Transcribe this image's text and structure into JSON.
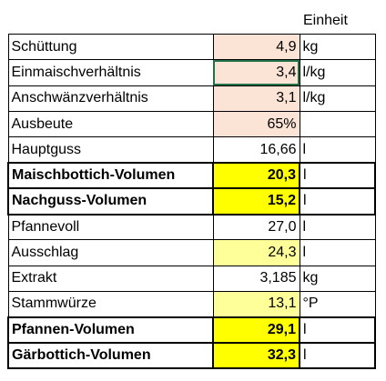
{
  "header": {
    "unit_label": "Einheit"
  },
  "rows": [
    {
      "label": "Schüttung",
      "value": "4,9",
      "unit": "kg",
      "fill": "peach",
      "bold": false
    },
    {
      "label": "Einmaischverhältnis",
      "value": "3,4",
      "unit": "l/kg",
      "fill": "peach",
      "bold": false,
      "selected": true
    },
    {
      "label": "Anschwänzverhältnis",
      "value": "3,1",
      "unit": "l/kg",
      "fill": "peach",
      "bold": false
    },
    {
      "label": "Ausbeute",
      "value": "65%",
      "unit": "",
      "fill": "peach",
      "bold": false
    },
    {
      "label": "Hauptguss",
      "value": "16,66",
      "unit": "l",
      "fill": "none",
      "bold": false
    },
    {
      "label": "Maischbottich-Volumen",
      "value": "20,3",
      "unit": "l",
      "fill": "yellow",
      "bold": true
    },
    {
      "label": "Nachguss-Volumen",
      "value": "15,2",
      "unit": "l",
      "fill": "yellow",
      "bold": true
    },
    {
      "label": "Pfannevoll",
      "value": "27,0",
      "unit": "l",
      "fill": "none",
      "bold": false
    },
    {
      "label": "Ausschlag",
      "value": "24,3",
      "unit": "l",
      "fill": "lightyellow",
      "bold": false
    },
    {
      "label": "Extrakt",
      "value": "3,185",
      "unit": "kg",
      "fill": "none",
      "bold": false
    },
    {
      "label": "Stammwürze",
      "value": "13,1",
      "unit": "°P",
      "fill": "lightyellow",
      "bold": false
    },
    {
      "label": "Pfannen-Volumen",
      "value": "29,1",
      "unit": "l",
      "fill": "yellow",
      "bold": true
    },
    {
      "label": "Gärbottich-Volumen",
      "value": "32,3",
      "unit": "l",
      "fill": "yellow",
      "bold": true
    }
  ],
  "colors": {
    "peach": "#fbe4d5",
    "yellow": "#ffff00",
    "lightyellow": "#ffff99",
    "selection": "#217346"
  }
}
